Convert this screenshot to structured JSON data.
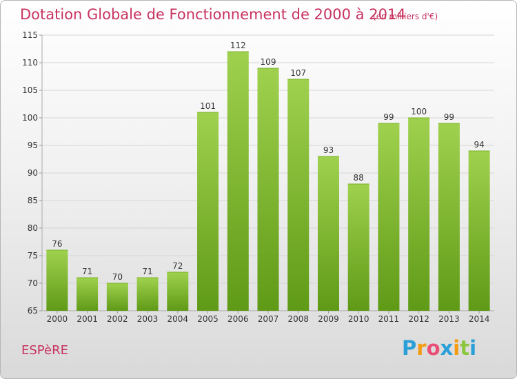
{
  "header": {
    "title": "Dotation Globale de Fonctionnement de 2000 à 2014",
    "unit": "(en milliers d'€)"
  },
  "footer": {
    "commune": "ESPèRE",
    "logo_text": "Proxiti",
    "logo_letters": [
      "P",
      "r",
      "o",
      "x",
      "i",
      "t",
      "i"
    ],
    "logo_colors": [
      "#2a9fd8",
      "#f39c12",
      "#e94e77",
      "#2a9fd8",
      "#f39c12",
      "#8cc63f",
      "#2a9fd8"
    ]
  },
  "colors": {
    "accent": "#c8325f",
    "bar_top": "#9fd14e",
    "bar_bottom": "#5f9a16"
  },
  "chart_data": {
    "type": "bar",
    "title": "Dotation Globale de Fonctionnement de 2000 à 2014",
    "subtitle": "(en milliers d'€)",
    "categories": [
      "2000",
      "2001",
      "2002",
      "2003",
      "2004",
      "2005",
      "2006",
      "2007",
      "2008",
      "2009",
      "2010",
      "2011",
      "2012",
      "2013",
      "2014"
    ],
    "values": [
      76,
      71,
      70,
      71,
      72,
      101,
      112,
      109,
      107,
      93,
      88,
      99,
      100,
      99,
      94
    ],
    "ylim": [
      65,
      115
    ],
    "yticks": [
      65,
      70,
      75,
      80,
      85,
      90,
      95,
      100,
      105,
      110,
      115
    ],
    "grid": true,
    "xlabel": "",
    "ylabel": ""
  }
}
